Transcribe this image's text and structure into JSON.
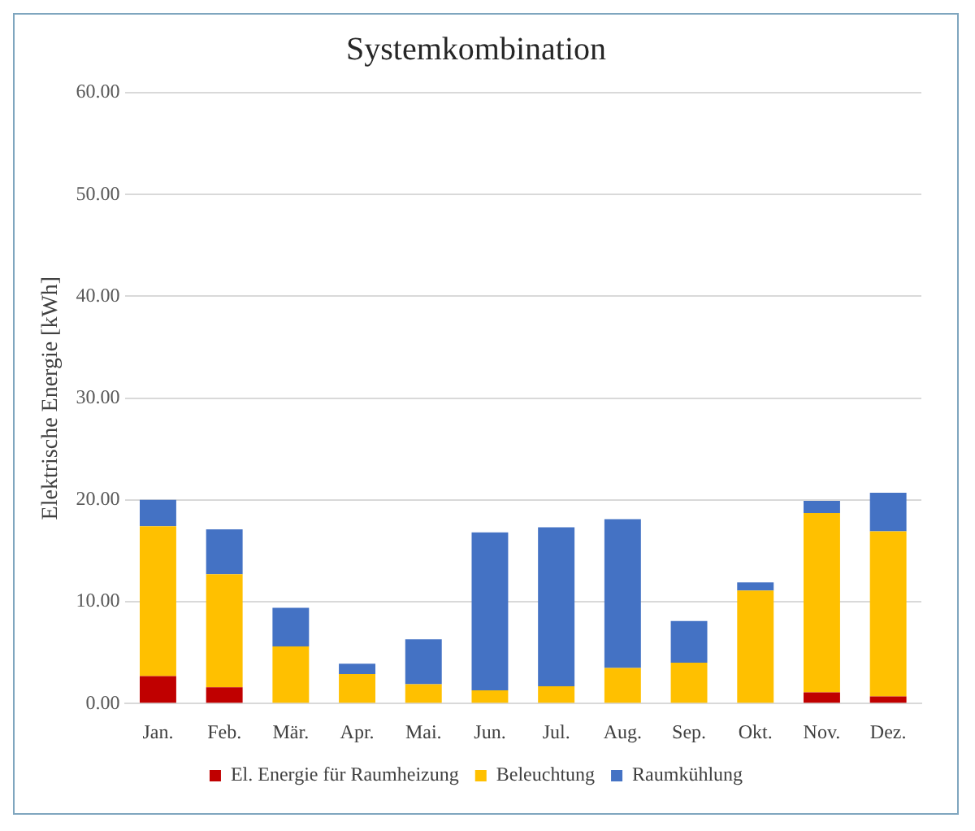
{
  "chart_data": {
    "type": "bar",
    "title": "Systemkombination",
    "ylabel": "Elektrische Energie [kWh]",
    "categories": [
      "Jan.",
      "Feb.",
      "Mär.",
      "Apr.",
      "Mai.",
      "Jun.",
      "Jul.",
      "Aug.",
      "Sep.",
      "Okt.",
      "Nov.",
      "Dez."
    ],
    "stacked": true,
    "series": [
      {
        "name": "El. Energie für Raumheizung",
        "color": "#c00000",
        "values": [
          2.7,
          1.6,
          0,
          0,
          0,
          0,
          0,
          0,
          0,
          0,
          1.1,
          0.7
        ]
      },
      {
        "name": "Beleuchtung",
        "color": "#ffc000",
        "values": [
          14.7,
          11.1,
          5.6,
          2.9,
          1.9,
          1.3,
          1.7,
          3.5,
          4.0,
          11.1,
          17.6,
          16.2
        ]
      },
      {
        "name": "Raumkühlung",
        "color": "#4472c4",
        "values": [
          2.6,
          4.4,
          3.8,
          1.0,
          4.4,
          15.5,
          15.6,
          14.6,
          4.1,
          0.8,
          1.2,
          3.8
        ]
      }
    ],
    "ylim": [
      0,
      60
    ],
    "yticks": [
      {
        "value": 0,
        "label": "0.00"
      },
      {
        "value": 10,
        "label": "10.00"
      },
      {
        "value": 20,
        "label": "20.00"
      },
      {
        "value": 30,
        "label": "30.00"
      },
      {
        "value": 40,
        "label": "40.00"
      },
      {
        "value": 50,
        "label": "50.00"
      },
      {
        "value": 60,
        "label": "60.00"
      }
    ],
    "grid": "y",
    "legend": "bottom"
  }
}
